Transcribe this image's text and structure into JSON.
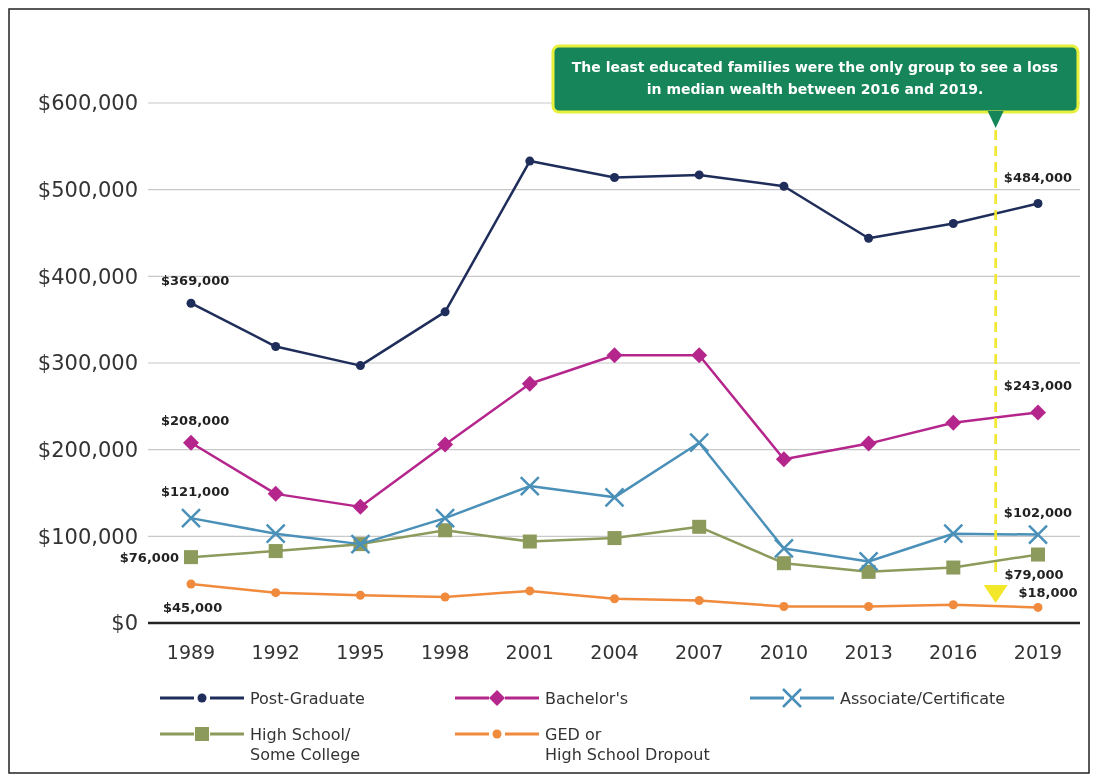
{
  "chart_data": {
    "type": "line",
    "categories": [
      "1989",
      "1992",
      "1995",
      "1998",
      "2001",
      "2004",
      "2007",
      "2010",
      "2013",
      "2016",
      "2019"
    ],
    "ylim": [
      0,
      600000
    ],
    "yticks": [
      {
        "value": 0,
        "label": "$0"
      },
      {
        "value": 100000,
        "label": "$100,000"
      },
      {
        "value": 200000,
        "label": "$200,000"
      },
      {
        "value": 300000,
        "label": "$300,000"
      },
      {
        "value": 400000,
        "label": "$400,000"
      },
      {
        "value": 500000,
        "label": "$500,000"
      },
      {
        "value": 600000,
        "label": "$600,000"
      }
    ],
    "grid": "y",
    "legend": "bottom",
    "annotations": [
      "The least educated families were the only group to see a loss in median wealth between 2016 and 2019."
    ],
    "series": [
      {
        "name": "Post-Graduate",
        "color": "#1f2d5a",
        "marker": "circle",
        "values": [
          369000,
          319000,
          297000,
          359000,
          533000,
          514000,
          517000,
          504000,
          444000,
          461000,
          484000
        ],
        "value_labels": [
          "$369,000",
          null,
          null,
          null,
          null,
          null,
          null,
          null,
          null,
          null,
          "$484,000"
        ]
      },
      {
        "name": "Bachelor's",
        "color": "#b5268c",
        "marker": "diamond",
        "values": [
          208000,
          149000,
          134000,
          206000,
          276000,
          309000,
          309000,
          189000,
          207000,
          231000,
          243000
        ],
        "value_labels": [
          "$208,000",
          null,
          null,
          null,
          null,
          null,
          null,
          null,
          null,
          null,
          "$243,000"
        ]
      },
      {
        "name": "Associate/Certificate",
        "color": "#4a90b8",
        "marker": "cross",
        "values": [
          121000,
          103000,
          91000,
          121000,
          158000,
          145000,
          208000,
          86000,
          71000,
          103000,
          102000
        ],
        "value_labels": [
          "$121,000",
          null,
          null,
          null,
          null,
          null,
          null,
          null,
          null,
          null,
          "$102,000"
        ]
      },
      {
        "name": "High School/\nSome College",
        "color": "#8c9a5b",
        "marker": "square",
        "values": [
          76000,
          83000,
          91000,
          107000,
          94000,
          98000,
          111000,
          69000,
          59000,
          64000,
          79000
        ],
        "value_labels": [
          "$76,000",
          null,
          null,
          null,
          null,
          null,
          null,
          null,
          null,
          null,
          "$79,000"
        ]
      },
      {
        "name": "GED or\nHigh School Dropout",
        "color": "#f08a3c",
        "marker": "circle",
        "values": [
          45000,
          35000,
          32000,
          30000,
          37000,
          28000,
          26000,
          19000,
          19000,
          21000,
          18000
        ],
        "value_labels": [
          "$45,000",
          null,
          null,
          null,
          null,
          null,
          null,
          null,
          null,
          null,
          "$18,000"
        ]
      }
    ]
  }
}
